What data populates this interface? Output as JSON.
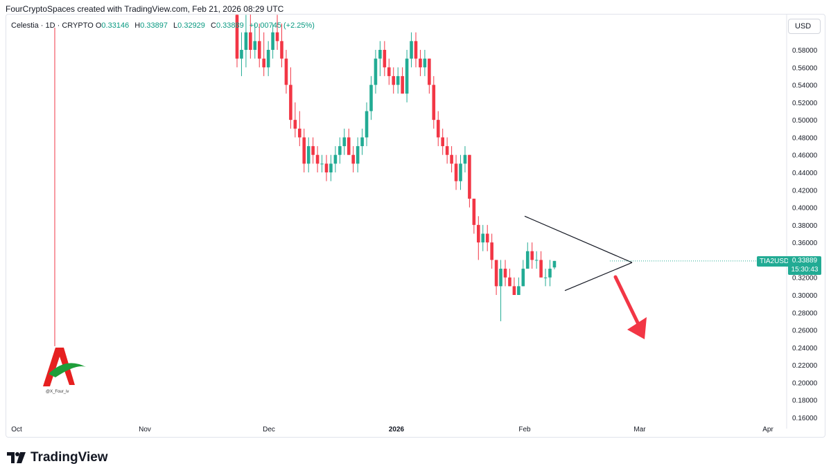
{
  "header": {
    "text": "FourCryptoSpaces created with TradingView.com, Feb 21, 2026 08:29 UTC"
  },
  "legend": {
    "symbol": "Celestia · 1D · CRYPTO",
    "open_label": "O",
    "open": "0.33146",
    "high_label": "H",
    "high": "0.33897",
    "low_label": "L",
    "low": "0.32929",
    "close_label": "C",
    "close": "0.33889",
    "change": "+0.00745 (+2.25%)"
  },
  "currency": "USD",
  "price_tag": {
    "ticker": "TIA2USD",
    "price": "0.33889",
    "countdown": "15:30:43"
  },
  "footer": {
    "brand": "TradingView"
  },
  "watermark": {
    "text": "@X_Four_iv"
  },
  "colors": {
    "up": "#22ab94",
    "down": "#f23645",
    "accent": "#22ab94",
    "arrow": "#f23645"
  },
  "chart_data": {
    "type": "candlestick",
    "interval": "1D",
    "ylim": [
      0.15,
      0.6
    ],
    "y_ticks": [
      "0.58000",
      "0.56000",
      "0.54000",
      "0.52000",
      "0.50000",
      "0.48000",
      "0.46000",
      "0.44000",
      "0.42000",
      "0.40000",
      "0.38000",
      "0.36000",
      "0.34000",
      "0.32000",
      "0.30000",
      "0.28000",
      "0.26000",
      "0.24000",
      "0.22000",
      "0.20000",
      "0.18000",
      "0.16000"
    ],
    "x_ticks": [
      "Oct",
      "Nov",
      "Dec",
      "2026",
      "Feb",
      "Mar",
      "Apr"
    ],
    "candles": [
      [
        0.62,
        0.64,
        0.56,
        0.57
      ],
      [
        0.57,
        0.6,
        0.55,
        0.58
      ],
      [
        0.58,
        0.62,
        0.56,
        0.6
      ],
      [
        0.6,
        0.63,
        0.57,
        0.58
      ],
      [
        0.58,
        0.61,
        0.57,
        0.59
      ],
      [
        0.59,
        0.61,
        0.56,
        0.57
      ],
      [
        0.57,
        0.6,
        0.55,
        0.56
      ],
      [
        0.56,
        0.59,
        0.55,
        0.58
      ],
      [
        0.58,
        0.61,
        0.57,
        0.6
      ],
      [
        0.6,
        0.62,
        0.58,
        0.59
      ],
      [
        0.59,
        0.61,
        0.56,
        0.57
      ],
      [
        0.57,
        0.58,
        0.53,
        0.54
      ],
      [
        0.54,
        0.56,
        0.49,
        0.5
      ],
      [
        0.5,
        0.52,
        0.48,
        0.49
      ],
      [
        0.49,
        0.51,
        0.47,
        0.48
      ],
      [
        0.48,
        0.49,
        0.44,
        0.45
      ],
      [
        0.45,
        0.48,
        0.44,
        0.47
      ],
      [
        0.47,
        0.48,
        0.45,
        0.46
      ],
      [
        0.46,
        0.47,
        0.44,
        0.45
      ],
      [
        0.45,
        0.46,
        0.44,
        0.45
      ],
      [
        0.45,
        0.46,
        0.43,
        0.44
      ],
      [
        0.44,
        0.46,
        0.43,
        0.45
      ],
      [
        0.45,
        0.47,
        0.44,
        0.46
      ],
      [
        0.46,
        0.48,
        0.45,
        0.47
      ],
      [
        0.47,
        0.49,
        0.46,
        0.48
      ],
      [
        0.48,
        0.49,
        0.46,
        0.46
      ],
      [
        0.46,
        0.47,
        0.44,
        0.45
      ],
      [
        0.45,
        0.48,
        0.44,
        0.47
      ],
      [
        0.47,
        0.49,
        0.46,
        0.48
      ],
      [
        0.48,
        0.52,
        0.47,
        0.51
      ],
      [
        0.51,
        0.55,
        0.5,
        0.54
      ],
      [
        0.54,
        0.58,
        0.53,
        0.57
      ],
      [
        0.57,
        0.59,
        0.55,
        0.58
      ],
      [
        0.58,
        0.59,
        0.55,
        0.56
      ],
      [
        0.56,
        0.57,
        0.54,
        0.55
      ],
      [
        0.55,
        0.56,
        0.53,
        0.54
      ],
      [
        0.54,
        0.56,
        0.53,
        0.55
      ],
      [
        0.55,
        0.56,
        0.53,
        0.53
      ],
      [
        0.53,
        0.58,
        0.52,
        0.57
      ],
      [
        0.57,
        0.6,
        0.56,
        0.59
      ],
      [
        0.59,
        0.6,
        0.56,
        0.57
      ],
      [
        0.57,
        0.58,
        0.55,
        0.56
      ],
      [
        0.56,
        0.58,
        0.55,
        0.57
      ],
      [
        0.57,
        0.57,
        0.53,
        0.54
      ],
      [
        0.54,
        0.55,
        0.49,
        0.5
      ],
      [
        0.5,
        0.51,
        0.47,
        0.48
      ],
      [
        0.48,
        0.49,
        0.46,
        0.47
      ],
      [
        0.47,
        0.48,
        0.45,
        0.46
      ],
      [
        0.46,
        0.47,
        0.44,
        0.45
      ],
      [
        0.45,
        0.46,
        0.42,
        0.43
      ],
      [
        0.43,
        0.46,
        0.42,
        0.45
      ],
      [
        0.45,
        0.47,
        0.44,
        0.46
      ],
      [
        0.46,
        0.46,
        0.4,
        0.41
      ],
      [
        0.41,
        0.41,
        0.37,
        0.38
      ],
      [
        0.38,
        0.39,
        0.34,
        0.36
      ],
      [
        0.36,
        0.38,
        0.35,
        0.37
      ],
      [
        0.37,
        0.38,
        0.35,
        0.36
      ],
      [
        0.36,
        0.37,
        0.33,
        0.34
      ],
      [
        0.34,
        0.34,
        0.3,
        0.31
      ],
      [
        0.31,
        0.34,
        0.27,
        0.33
      ],
      [
        0.33,
        0.34,
        0.31,
        0.32
      ],
      [
        0.32,
        0.33,
        0.31,
        0.31
      ],
      [
        0.31,
        0.32,
        0.3,
        0.3
      ],
      [
        0.3,
        0.32,
        0.3,
        0.31
      ],
      [
        0.31,
        0.34,
        0.31,
        0.33
      ],
      [
        0.33,
        0.36,
        0.33,
        0.35
      ],
      [
        0.35,
        0.36,
        0.33,
        0.34
      ],
      [
        0.34,
        0.35,
        0.33,
        0.34
      ],
      [
        0.34,
        0.35,
        0.32,
        0.32
      ],
      [
        0.32,
        0.33,
        0.31,
        0.32
      ],
      [
        0.32,
        0.34,
        0.31,
        0.33
      ],
      [
        0.33146,
        0.33897,
        0.32929,
        0.33889
      ]
    ],
    "annotations": {
      "triangle_pattern": [
        [
          0.39,
          "upper-start"
        ],
        [
          0.305,
          "lower-start"
        ],
        [
          0.337,
          "apex"
        ]
      ],
      "arrow_direction": "down"
    }
  }
}
